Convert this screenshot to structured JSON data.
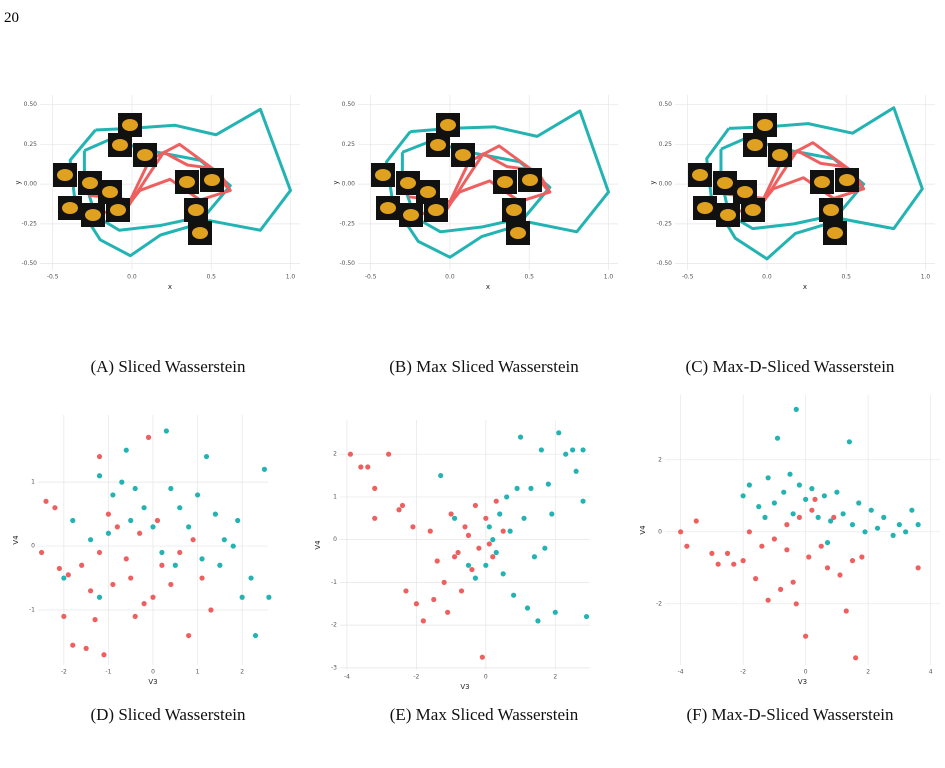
{
  "page_number": "20",
  "chart_data": [
    {
      "type": "line",
      "caption": "(A) Sliced Wasserstein",
      "xlabel": "x",
      "ylabel": "y",
      "xlim": [
        -0.58,
        1.06
      ],
      "ylim": [
        -0.54,
        0.56
      ],
      "xticks": [
        -0.5,
        {
          "value": 0,
          "label": "0.0"
        },
        0.5,
        {
          "value": 1,
          "label": "1.0"
        }
      ],
      "yticks": [
        {
          "value": -0.5,
          "label": "-0.50"
        },
        -0.25,
        {
          "value": 0,
          "label": "0.00"
        },
        0.25,
        {
          "value": 0.5,
          "label": "0.50"
        }
      ],
      "grid": true,
      "series": [
        {
          "color": "#23b3b3",
          "x": [
            -0.23,
            -0.01,
            0.27,
            0.53,
            0.81,
            1.0,
            0.81,
            0.49,
            0.18,
            -0.01,
            -0.2,
            -0.36,
            -0.39,
            -0.23
          ],
          "values": [
            0.34,
            0.35,
            0.37,
            0.31,
            0.47,
            -0.04,
            -0.29,
            -0.23,
            -0.32,
            -0.45,
            -0.35,
            -0.1,
            0.15,
            0.34
          ]
        },
        {
          "color": "#23b3b3",
          "x": [
            -0.3,
            -0.14,
            0.11,
            0.43,
            0.62,
            0.46,
            0.18,
            -0.08,
            -0.23,
            -0.3,
            -0.3
          ],
          "values": [
            0.21,
            0.28,
            0.21,
            0.15,
            -0.01,
            -0.2,
            -0.26,
            -0.29,
            -0.2,
            0.03,
            0.21
          ]
        },
        {
          "color": "#ee6060",
          "x": [
            -0.27,
            -0.01,
            0.11,
            0.3,
            0.56,
            0.62,
            0.43,
            0.24,
            0.05,
            -0.08,
            -0.23
          ],
          "values": [
            -0.07,
            -0.1,
            0.15,
            0.25,
            0.06,
            -0.04,
            -0.1,
            0.03,
            -0.04,
            -0.2,
            -0.16
          ]
        },
        {
          "color": "#ee6060",
          "x": [
            -0.05,
            0.1,
            0.2,
            0.35,
            0.5,
            0.6
          ],
          "values": [
            -0.18,
            0.05,
            0.2,
            0.12,
            0.1,
            -0.02
          ]
        }
      ]
    },
    {
      "type": "line",
      "caption": "(B) Max Sliced Wasserstein",
      "xlabel": "x",
      "ylabel": "y",
      "xlim": [
        -0.58,
        1.06
      ],
      "ylim": [
        -0.54,
        0.56
      ],
      "xticks": [
        -0.5,
        {
          "value": 0,
          "label": "0.0"
        },
        0.5,
        {
          "value": 1,
          "label": "1.0"
        }
      ],
      "yticks": [
        {
          "value": -0.5,
          "label": "-0.50"
        },
        -0.25,
        {
          "value": 0,
          "label": "0.00"
        },
        0.25,
        {
          "value": 0.5,
          "label": "0.50"
        }
      ],
      "grid": true,
      "series": [
        {
          "color": "#23b3b3",
          "x": [
            -0.25,
            0.0,
            0.28,
            0.55,
            0.82,
            1.0,
            0.8,
            0.5,
            0.2,
            0.0,
            -0.2,
            -0.36,
            -0.4,
            -0.25
          ],
          "values": [
            0.33,
            0.35,
            0.36,
            0.3,
            0.46,
            -0.05,
            -0.3,
            -0.24,
            -0.33,
            -0.46,
            -0.36,
            -0.12,
            0.14,
            0.33
          ]
        },
        {
          "color": "#23b3b3",
          "x": [
            -0.3,
            -0.12,
            0.12,
            0.44,
            0.63,
            0.47,
            0.2,
            -0.06,
            -0.22,
            -0.3,
            -0.3
          ],
          "values": [
            0.2,
            0.27,
            0.2,
            0.14,
            -0.02,
            -0.21,
            -0.27,
            -0.3,
            -0.21,
            0.02,
            0.2
          ]
        },
        {
          "color": "#ee6060",
          "x": [
            -0.26,
            0.0,
            0.12,
            0.31,
            0.57,
            0.63,
            0.44,
            0.25,
            0.06,
            -0.07,
            -0.22
          ],
          "values": [
            -0.08,
            -0.11,
            0.14,
            0.24,
            0.05,
            -0.05,
            -0.11,
            0.02,
            -0.05,
            -0.21,
            -0.17
          ]
        },
        {
          "color": "#ee6060",
          "x": [
            -0.04,
            0.11,
            0.21,
            0.36,
            0.51,
            0.61
          ],
          "values": [
            -0.19,
            0.04,
            0.19,
            0.11,
            0.09,
            -0.03
          ]
        }
      ]
    },
    {
      "type": "line",
      "caption": "(C) Max-D-Sliced Wasserstein",
      "xlabel": "x",
      "ylabel": "y",
      "xlim": [
        -0.58,
        1.06
      ],
      "ylim": [
        -0.54,
        0.56
      ],
      "xticks": [
        -0.5,
        {
          "value": 0,
          "label": "0.0"
        },
        0.5,
        {
          "value": 1,
          "label": "1.0"
        }
      ],
      "yticks": [
        {
          "value": -0.5,
          "label": "-0.50"
        },
        -0.25,
        {
          "value": 0,
          "label": "0.00"
        },
        0.25,
        {
          "value": 0.5,
          "label": "0.50"
        }
      ],
      "grid": true,
      "series": [
        {
          "color": "#23b3b3",
          "x": [
            -0.24,
            0.0,
            0.26,
            0.54,
            0.8,
            0.98,
            0.8,
            0.48,
            0.18,
            0.0,
            -0.2,
            -0.35,
            -0.38,
            -0.24
          ],
          "values": [
            0.35,
            0.36,
            0.38,
            0.32,
            0.48,
            -0.03,
            -0.28,
            -0.22,
            -0.31,
            -0.47,
            -0.34,
            -0.09,
            0.16,
            0.35
          ]
        },
        {
          "color": "#23b3b3",
          "x": [
            -0.29,
            -0.13,
            0.1,
            0.42,
            0.61,
            0.45,
            0.17,
            -0.09,
            -0.24,
            -0.29,
            -0.29
          ],
          "values": [
            0.22,
            0.29,
            0.22,
            0.16,
            0.0,
            -0.19,
            -0.25,
            -0.28,
            -0.19,
            0.04,
            0.22
          ]
        },
        {
          "color": "#ee6060",
          "x": [
            -0.28,
            -0.02,
            0.1,
            0.29,
            0.55,
            0.61,
            0.42,
            0.23,
            0.04,
            -0.09,
            -0.24
          ],
          "values": [
            -0.06,
            -0.09,
            0.16,
            0.26,
            0.07,
            -0.03,
            -0.09,
            0.04,
            -0.03,
            -0.19,
            -0.15
          ]
        },
        {
          "color": "#ee6060",
          "x": [
            -0.06,
            0.09,
            0.19,
            0.34,
            0.49,
            0.59
          ],
          "values": [
            -0.17,
            0.06,
            0.21,
            0.13,
            0.11,
            -0.01
          ]
        }
      ]
    },
    {
      "type": "scatter",
      "caption": "(D) Sliced Wasserstein",
      "xlabel": "V3",
      "ylabel": "V4",
      "xlim": [
        -2.58,
        2.58
      ],
      "ylim": [
        -1.86,
        2.05
      ],
      "xticks": [
        -2,
        -1,
        0,
        1,
        2
      ],
      "yticks": [
        -1,
        0,
        1
      ],
      "grid": true,
      "series": [
        {
          "color": "#ee6060",
          "x": [
            -2.5,
            -2.4,
            -2.2,
            -2.1,
            -1.9,
            -2.0,
            -1.8,
            -1.6,
            -1.4,
            -1.3,
            -1.2,
            -1.2,
            -1.1,
            -1.0,
            -0.9,
            -0.8,
            -0.6,
            -0.5,
            -0.4,
            -0.3,
            -0.1,
            0,
            0.1,
            0.2,
            0.4,
            0.6,
            0.8,
            0.9,
            1.1,
            1.3,
            -1.5,
            -0.2
          ],
          "values": [
            -0.1,
            0.7,
            0.6,
            -0.35,
            -0.45,
            -1.1,
            -1.55,
            -0.3,
            -0.7,
            -1.15,
            1.4,
            -0.1,
            -1.7,
            0.5,
            -0.6,
            0.3,
            -0.2,
            -0.5,
            -1.1,
            0.2,
            1.7,
            -0.8,
            0.4,
            -0.3,
            -0.6,
            -0.1,
            -1.4,
            0.1,
            -0.5,
            -1.0,
            -1.6,
            -0.9
          ]
        },
        {
          "color": "#23b3b3",
          "x": [
            -2.0,
            -1.8,
            -1.4,
            -1.2,
            -1.0,
            -0.9,
            -0.7,
            -0.6,
            -0.5,
            -0.4,
            -0.2,
            0,
            0.3,
            0.4,
            0.5,
            0.6,
            0.8,
            1.0,
            1.1,
            1.2,
            1.4,
            1.5,
            1.6,
            1.8,
            2.0,
            2.2,
            2.3,
            2.5,
            2.6,
            1.9,
            0.2,
            -1.2
          ],
          "values": [
            -0.5,
            0.4,
            0.1,
            1.1,
            0.2,
            0.8,
            1.0,
            1.5,
            0.4,
            0.9,
            0.6,
            0.3,
            1.8,
            0.9,
            -0.3,
            0.6,
            0.3,
            0.8,
            -0.2,
            1.4,
            0.5,
            -0.3,
            0.1,
            0.0,
            -0.8,
            -0.5,
            -1.4,
            1.2,
            -0.8,
            0.4,
            -0.1,
            -0.8
          ]
        }
      ]
    },
    {
      "type": "scatter",
      "caption": "(E) Max Sliced Wasserstein",
      "xlabel": "V3",
      "ylabel": "V4",
      "xlim": [
        -4.2,
        3.0
      ],
      "ylim": [
        -3.05,
        2.8
      ],
      "xticks": [
        -4,
        -2,
        0,
        2
      ],
      "yticks": [
        -3,
        -2,
        -1,
        0,
        1,
        2
      ],
      "grid": true,
      "series": [
        {
          "color": "#ee6060",
          "x": [
            -3.9,
            -3.6,
            -3.4,
            -3.2,
            -2.8,
            -3.2,
            -2.5,
            -2.4,
            -2.3,
            -2.0,
            -1.8,
            -1.6,
            -1.4,
            -1.2,
            -1.1,
            -1.0,
            -0.8,
            -0.7,
            -0.6,
            -0.5,
            -0.4,
            -0.3,
            -0.2,
            -0.1,
            0,
            0.1,
            0.3,
            0.5,
            -1.5,
            -0.9,
            -2.1,
            0.2
          ],
          "values": [
            2.0,
            1.7,
            1.7,
            1.2,
            2.0,
            0.5,
            0.7,
            0.8,
            -1.2,
            -1.5,
            -1.9,
            0.2,
            -0.5,
            -1.0,
            -1.7,
            0.6,
            -0.3,
            -1.2,
            0.3,
            0.1,
            -0.7,
            0.8,
            -0.2,
            -2.75,
            0.5,
            -0.1,
            0.9,
            0.2,
            -1.4,
            -0.4,
            0.3,
            -0.4
          ]
        },
        {
          "color": "#23b3b3",
          "x": [
            -1.3,
            -0.9,
            -0.5,
            -0.3,
            0,
            0.1,
            0.3,
            0.4,
            0.5,
            0.6,
            0.7,
            0.8,
            0.9,
            1.0,
            1.1,
            1.2,
            1.3,
            1.4,
            1.5,
            1.6,
            1.7,
            1.9,
            2.0,
            2.1,
            2.3,
            2.5,
            2.6,
            2.8,
            2.8,
            2.9,
            1.8,
            0.2
          ],
          "values": [
            1.5,
            0.5,
            -0.6,
            -0.9,
            -0.6,
            0.3,
            -0.3,
            0.6,
            -0.8,
            1.0,
            0.2,
            -1.3,
            1.2,
            2.4,
            0.5,
            -1.6,
            1.2,
            -0.4,
            -1.9,
            2.1,
            -0.2,
            0.6,
            -1.7,
            2.5,
            2.0,
            2.1,
            1.6,
            2.1,
            0.9,
            -1.8,
            1.3,
            0.0
          ]
        }
      ]
    },
    {
      "type": "scatter",
      "caption": "(F) Max-D-Sliced Wasserstein",
      "xlabel": "V3",
      "ylabel": "V4",
      "xlim": [
        -4.5,
        4.3
      ],
      "ylim": [
        -3.7,
        3.8
      ],
      "xticks": [
        -4,
        -2,
        0,
        2,
        4
      ],
      "yticks": [
        -2,
        0,
        2
      ],
      "grid": true,
      "series": [
        {
          "color": "#ee6060",
          "x": [
            -4.0,
            -3.8,
            -3.5,
            -3.0,
            -2.8,
            -2.5,
            -2.3,
            -2.0,
            -1.8,
            -1.6,
            -1.4,
            -1.2,
            -1.0,
            -0.8,
            -0.6,
            -0.4,
            -0.3,
            -0.2,
            0,
            0.1,
            0.3,
            0.5,
            0.7,
            0.9,
            1.1,
            1.3,
            1.5,
            1.6,
            1.8,
            3.6,
            -0.6,
            0.2
          ],
          "values": [
            0.0,
            -0.4,
            0.3,
            -0.6,
            -0.9,
            -0.6,
            -0.9,
            -0.8,
            0.0,
            -1.3,
            -0.4,
            -1.9,
            -0.2,
            -1.6,
            0.2,
            -1.4,
            -2.0,
            0.4,
            -2.9,
            -0.7,
            0.9,
            -0.4,
            -1.0,
            0.4,
            -1.2,
            -2.2,
            -0.8,
            -3.5,
            -0.7,
            -1.0,
            -0.5,
            0.6
          ]
        },
        {
          "color": "#23b3b3",
          "x": [
            -2.0,
            -1.8,
            -1.5,
            -1.2,
            -1.0,
            -0.9,
            -0.7,
            -0.5,
            -0.4,
            -0.3,
            -0.2,
            0,
            0.2,
            0.4,
            0.6,
            0.8,
            1.0,
            1.2,
            1.4,
            1.5,
            1.7,
            1.9,
            2.1,
            2.3,
            2.5,
            2.8,
            3.0,
            3.2,
            3.4,
            3.6,
            0.7,
            -1.3
          ],
          "values": [
            1.0,
            1.3,
            0.7,
            1.5,
            0.8,
            2.6,
            1.1,
            1.6,
            0.5,
            3.4,
            1.3,
            0.9,
            1.2,
            0.4,
            1.0,
            0.3,
            1.1,
            0.5,
            2.5,
            0.2,
            0.8,
            0.0,
            0.6,
            0.1,
            0.4,
            -0.1,
            0.2,
            0.0,
            0.6,
            0.2,
            -0.3,
            0.4
          ]
        }
      ]
    }
  ]
}
